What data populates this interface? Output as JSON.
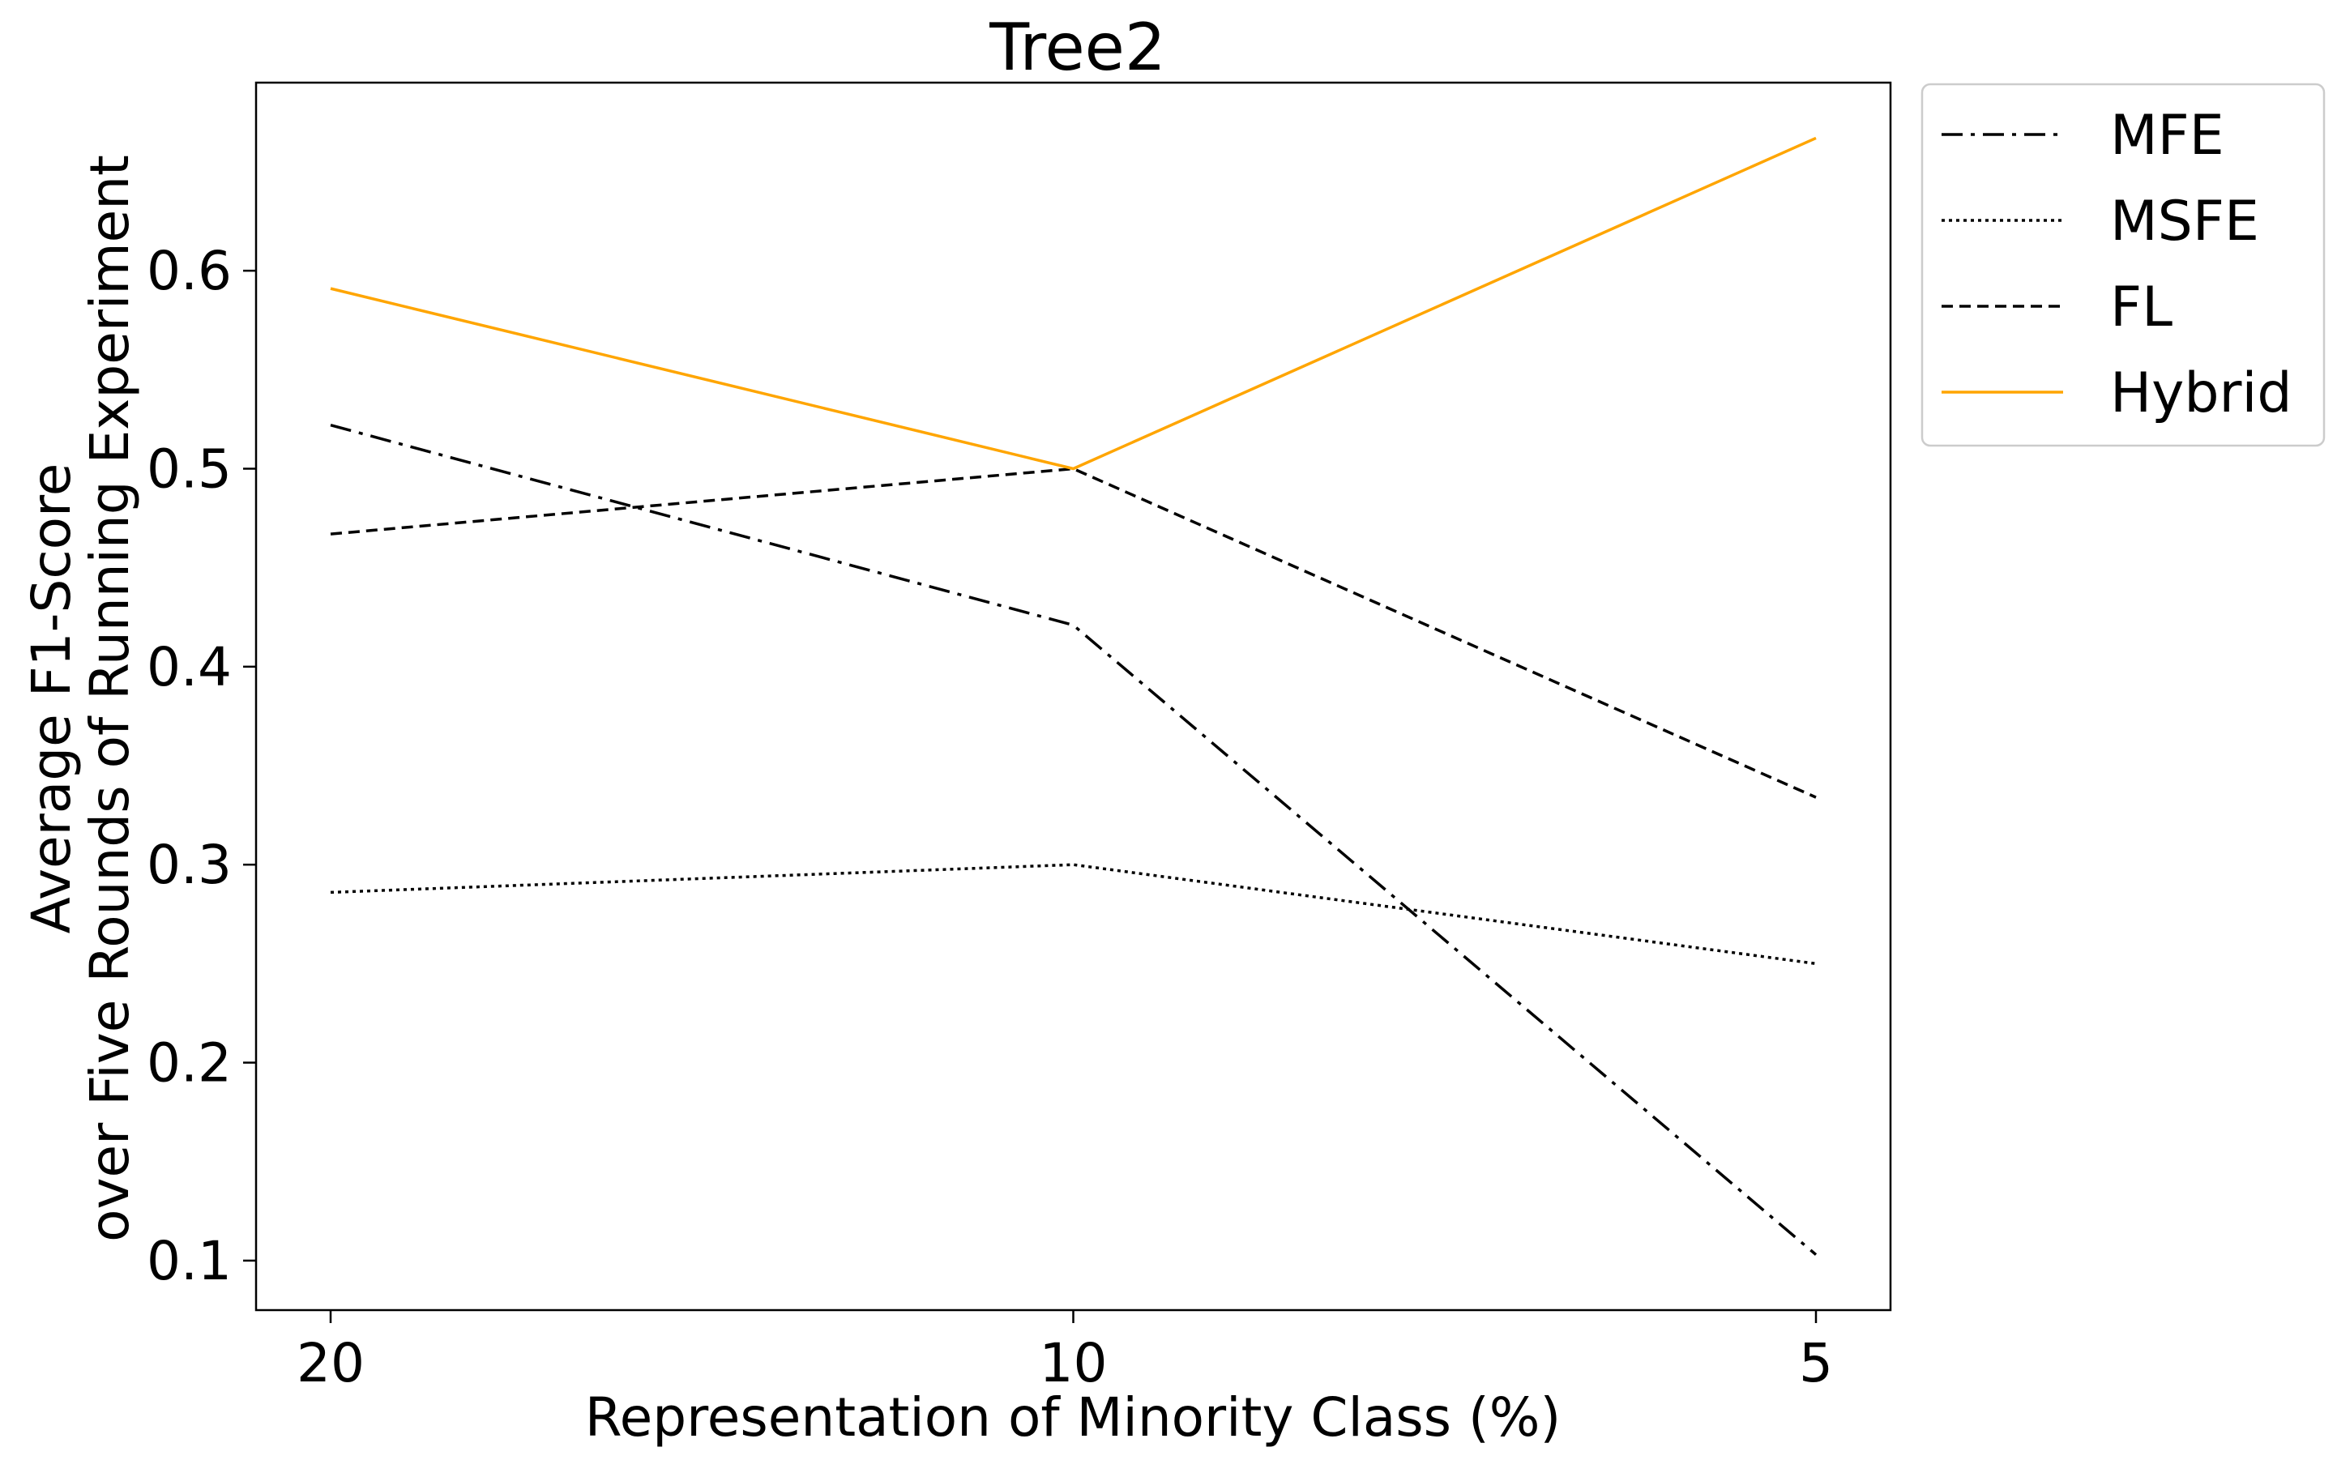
{
  "chart_data": {
    "type": "line",
    "title": "Tree2",
    "xlabel": "Representation of Minority Class (%)",
    "ylabel_lines": [
      "Average F1-Score",
      "over Five Rounds of Running Experiment"
    ],
    "categories": [
      "20",
      "10",
      "5"
    ],
    "yticks": [
      "0.1",
      "0.2",
      "0.3",
      "0.4",
      "0.5",
      "0.6"
    ],
    "ylim": [
      0.075,
      0.695
    ],
    "grid": false,
    "legend_position": "outside-top-right",
    "series": [
      {
        "name": "MFE",
        "values": [
          0.522,
          0.421,
          0.103
        ],
        "color": "#000000",
        "dash": "dashdot"
      },
      {
        "name": "MSFE",
        "values": [
          0.286,
          0.3,
          0.25
        ],
        "color": "#000000",
        "dash": "dotted"
      },
      {
        "name": "FL",
        "values": [
          0.467,
          0.5,
          0.334
        ],
        "color": "#000000",
        "dash": "dashed"
      },
      {
        "name": "Hybrid",
        "values": [
          0.591,
          0.5,
          0.667
        ],
        "color": "#ffa500",
        "dash": "solid"
      }
    ]
  }
}
